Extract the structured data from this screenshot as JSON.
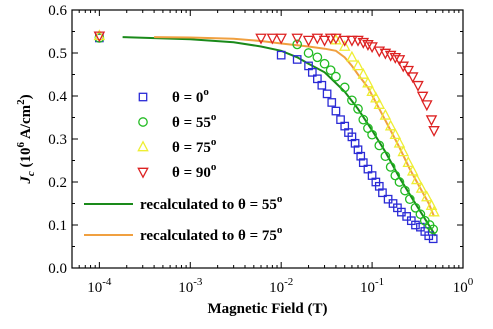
{
  "chart_data": {
    "type": "scatter",
    "xlabel": "Magnetic Field (T)",
    "ylabel_main": "J",
    "ylabel_sub": "c",
    "ylabel_rest": " (10",
    "ylabel_sup1": "6",
    "ylabel_unit": " A/cm",
    "ylabel_sup2": "2",
    "ylabel_close": ")",
    "xscale": "log",
    "xlim": [
      5e-05,
      1
    ],
    "ylim": [
      0.0,
      0.6
    ],
    "x_ticks": [
      {
        "value": 0.0001,
        "base": "10",
        "exp": "-4"
      },
      {
        "value": 0.001,
        "base": "10",
        "exp": "-3"
      },
      {
        "value": 0.01,
        "base": "10",
        "exp": "-2"
      },
      {
        "value": 0.1,
        "base": "10",
        "exp": "-1"
      },
      {
        "value": 1,
        "base": "10",
        "exp": "0"
      }
    ],
    "y_ticks": [
      "0.0",
      "0.1",
      "0.2",
      "0.3",
      "0.4",
      "0.5",
      "0.6"
    ],
    "grid": false,
    "legend_position": "inside, left-center",
    "series": [
      {
        "name": "θ = 0",
        "name_sup": "o",
        "marker": "square",
        "color": "#2b2bd6",
        "points": [
          [
            0.0001,
            0.535
          ],
          [
            0.01,
            0.495
          ],
          [
            0.015,
            0.485
          ],
          [
            0.02,
            0.47
          ],
          [
            0.022,
            0.455
          ],
          [
            0.025,
            0.44
          ],
          [
            0.028,
            0.425
          ],
          [
            0.032,
            0.405
          ],
          [
            0.036,
            0.385
          ],
          [
            0.04,
            0.365
          ],
          [
            0.045,
            0.345
          ],
          [
            0.05,
            0.33
          ],
          [
            0.055,
            0.315
          ],
          [
            0.06,
            0.305
          ],
          [
            0.065,
            0.29
          ],
          [
            0.07,
            0.275
          ],
          [
            0.075,
            0.26
          ],
          [
            0.08,
            0.245
          ],
          [
            0.09,
            0.23
          ],
          [
            0.1,
            0.215
          ],
          [
            0.11,
            0.2
          ],
          [
            0.12,
            0.19
          ],
          [
            0.13,
            0.175
          ],
          [
            0.15,
            0.16
          ],
          [
            0.17,
            0.15
          ],
          [
            0.19,
            0.14
          ],
          [
            0.21,
            0.13
          ],
          [
            0.24,
            0.12
          ],
          [
            0.27,
            0.11
          ],
          [
            0.3,
            0.1
          ],
          [
            0.34,
            0.095
          ],
          [
            0.38,
            0.085
          ],
          [
            0.42,
            0.075
          ],
          [
            0.47,
            0.068
          ]
        ]
      },
      {
        "name": "θ = 55",
        "name_sup": "o",
        "marker": "circle",
        "color": "#22bb22",
        "points": [
          [
            0.0001,
            0.535
          ],
          [
            0.015,
            0.52
          ],
          [
            0.02,
            0.5
          ],
          [
            0.025,
            0.49
          ],
          [
            0.03,
            0.475
          ],
          [
            0.035,
            0.46
          ],
          [
            0.04,
            0.445
          ],
          [
            0.05,
            0.42
          ],
          [
            0.06,
            0.39
          ],
          [
            0.07,
            0.37
          ],
          [
            0.08,
            0.345
          ],
          [
            0.09,
            0.325
          ],
          [
            0.1,
            0.31
          ],
          [
            0.12,
            0.285
          ],
          [
            0.14,
            0.26
          ],
          [
            0.16,
            0.235
          ],
          [
            0.18,
            0.215
          ],
          [
            0.2,
            0.2
          ],
          [
            0.23,
            0.18
          ],
          [
            0.26,
            0.16
          ],
          [
            0.3,
            0.14
          ],
          [
            0.34,
            0.125
          ],
          [
            0.38,
            0.11
          ],
          [
            0.43,
            0.1
          ],
          [
            0.47,
            0.09
          ]
        ]
      },
      {
        "name": "θ = 75",
        "name_sup": "o",
        "marker": "triangle-up",
        "color": "#eeee33",
        "points": [
          [
            0.0001,
            0.54
          ],
          [
            0.04,
            0.53
          ],
          [
            0.05,
            0.515
          ],
          [
            0.06,
            0.49
          ],
          [
            0.07,
            0.47
          ],
          [
            0.08,
            0.45
          ],
          [
            0.09,
            0.43
          ],
          [
            0.1,
            0.41
          ],
          [
            0.11,
            0.395
          ],
          [
            0.12,
            0.38
          ],
          [
            0.14,
            0.355
          ],
          [
            0.16,
            0.33
          ],
          [
            0.18,
            0.31
          ],
          [
            0.2,
            0.29
          ],
          [
            0.22,
            0.27
          ],
          [
            0.25,
            0.245
          ],
          [
            0.28,
            0.225
          ],
          [
            0.31,
            0.205
          ],
          [
            0.35,
            0.185
          ],
          [
            0.4,
            0.165
          ],
          [
            0.45,
            0.145
          ],
          [
            0.48,
            0.13
          ]
        ]
      },
      {
        "name": "θ = 90",
        "name_sup": "o",
        "marker": "triangle-down",
        "color": "#dd2222",
        "points": [
          [
            0.0001,
            0.54
          ],
          [
            0.006,
            0.535
          ],
          [
            0.008,
            0.535
          ],
          [
            0.01,
            0.535
          ],
          [
            0.015,
            0.535
          ],
          [
            0.02,
            0.53
          ],
          [
            0.025,
            0.535
          ],
          [
            0.03,
            0.53
          ],
          [
            0.035,
            0.535
          ],
          [
            0.04,
            0.535
          ],
          [
            0.05,
            0.53
          ],
          [
            0.06,
            0.53
          ],
          [
            0.07,
            0.53
          ],
          [
            0.08,
            0.525
          ],
          [
            0.09,
            0.52
          ],
          [
            0.1,
            0.515
          ],
          [
            0.12,
            0.505
          ],
          [
            0.14,
            0.5
          ],
          [
            0.16,
            0.495
          ],
          [
            0.18,
            0.49
          ],
          [
            0.2,
            0.485
          ],
          [
            0.22,
            0.47
          ],
          [
            0.25,
            0.46
          ],
          [
            0.28,
            0.445
          ],
          [
            0.32,
            0.425
          ],
          [
            0.36,
            0.4
          ],
          [
            0.4,
            0.38
          ],
          [
            0.45,
            0.345
          ],
          [
            0.48,
            0.32
          ]
        ]
      },
      {
        "name": "recalculated to θ = 55",
        "name_sup": "o",
        "marker": "line",
        "color": "#1a8a1a",
        "points": [
          [
            0.00018,
            0.537
          ],
          [
            0.001,
            0.532
          ],
          [
            0.003,
            0.525
          ],
          [
            0.006,
            0.515
          ],
          [
            0.01,
            0.505
          ],
          [
            0.015,
            0.49
          ],
          [
            0.02,
            0.475
          ],
          [
            0.03,
            0.455
          ],
          [
            0.04,
            0.43
          ],
          [
            0.05,
            0.41
          ],
          [
            0.07,
            0.37
          ],
          [
            0.1,
            0.32
          ],
          [
            0.14,
            0.27
          ],
          [
            0.2,
            0.21
          ],
          [
            0.28,
            0.16
          ],
          [
            0.38,
            0.115
          ],
          [
            0.5,
            0.075
          ]
        ]
      },
      {
        "name": "recalculated to θ = 75",
        "name_sup": "o",
        "marker": "line",
        "color": "#f0a040",
        "points": [
          [
            0.0004,
            0.537
          ],
          [
            0.001,
            0.536
          ],
          [
            0.003,
            0.533
          ],
          [
            0.006,
            0.528
          ],
          [
            0.01,
            0.522
          ],
          [
            0.02,
            0.515
          ],
          [
            0.03,
            0.51
          ],
          [
            0.04,
            0.505
          ],
          [
            0.05,
            0.49
          ],
          [
            0.06,
            0.47
          ],
          [
            0.07,
            0.45
          ],
          [
            0.09,
            0.42
          ],
          [
            0.12,
            0.37
          ],
          [
            0.16,
            0.32
          ],
          [
            0.2,
            0.28
          ],
          [
            0.26,
            0.23
          ],
          [
            0.34,
            0.185
          ],
          [
            0.42,
            0.15
          ],
          [
            0.48,
            0.12
          ]
        ]
      }
    ]
  }
}
